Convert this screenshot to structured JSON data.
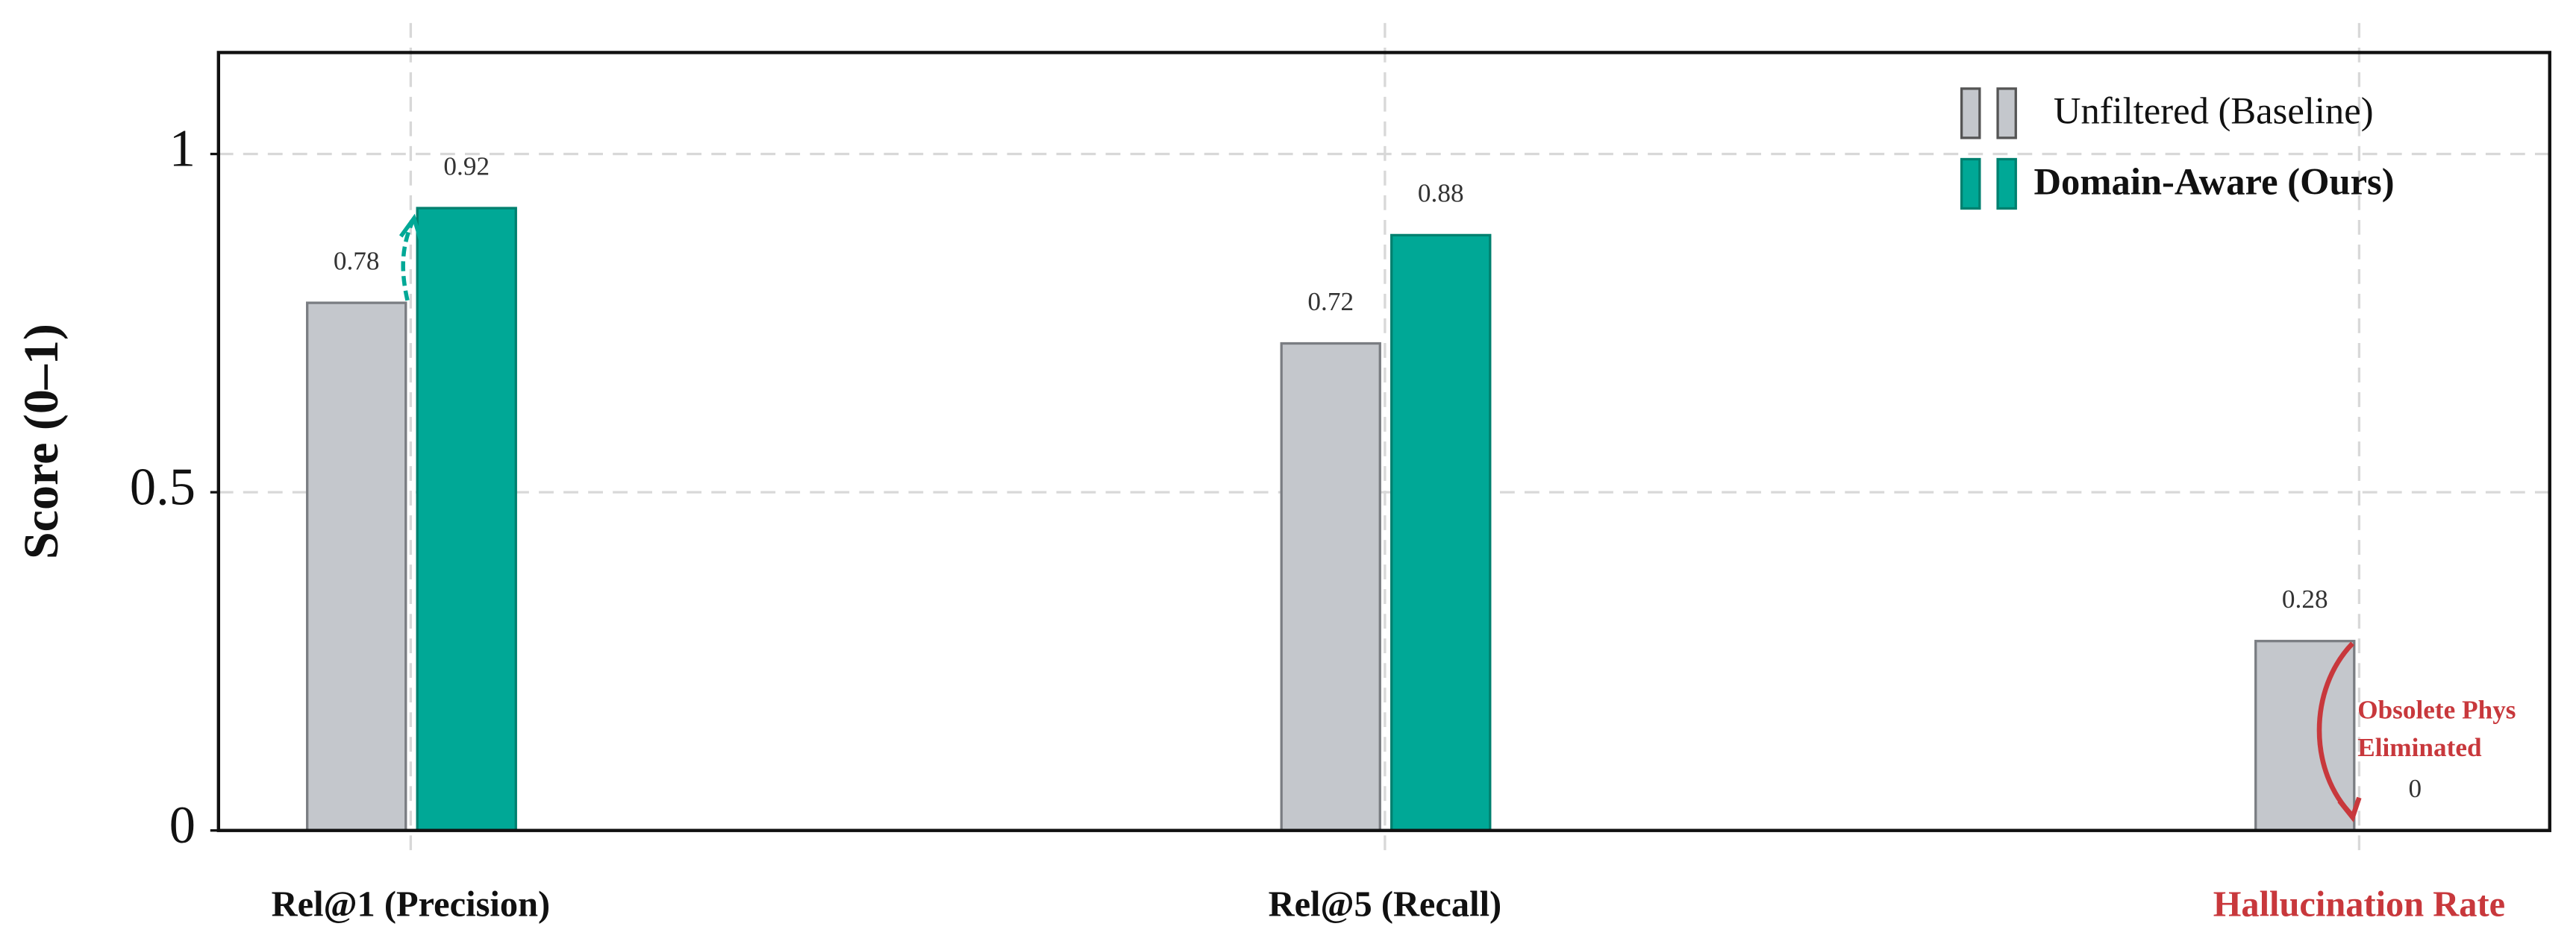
{
  "chart_data": {
    "type": "bar",
    "y_label": "Score (0–1)",
    "categories": [
      "Rel@1 (Precision)",
      "Rel@5 (Recall)",
      "Hallucination Rate"
    ],
    "series": [
      {
        "name": "Unfiltered (Baseline)",
        "color": "#c4c7cc",
        "values": [
          0.78,
          0.72,
          0.28
        ]
      },
      {
        "name": "Domain-Aware (Ours)",
        "color": "#00a896",
        "values": [
          0.92,
          0.88,
          0
        ]
      }
    ],
    "ylim": [
      0,
      1.15
    ],
    "yticks": [
      0,
      0.5,
      1
    ],
    "grid": true,
    "legend": "upper right",
    "annotation": [
      "Obsolete Phys",
      "Eliminated"
    ]
  }
}
